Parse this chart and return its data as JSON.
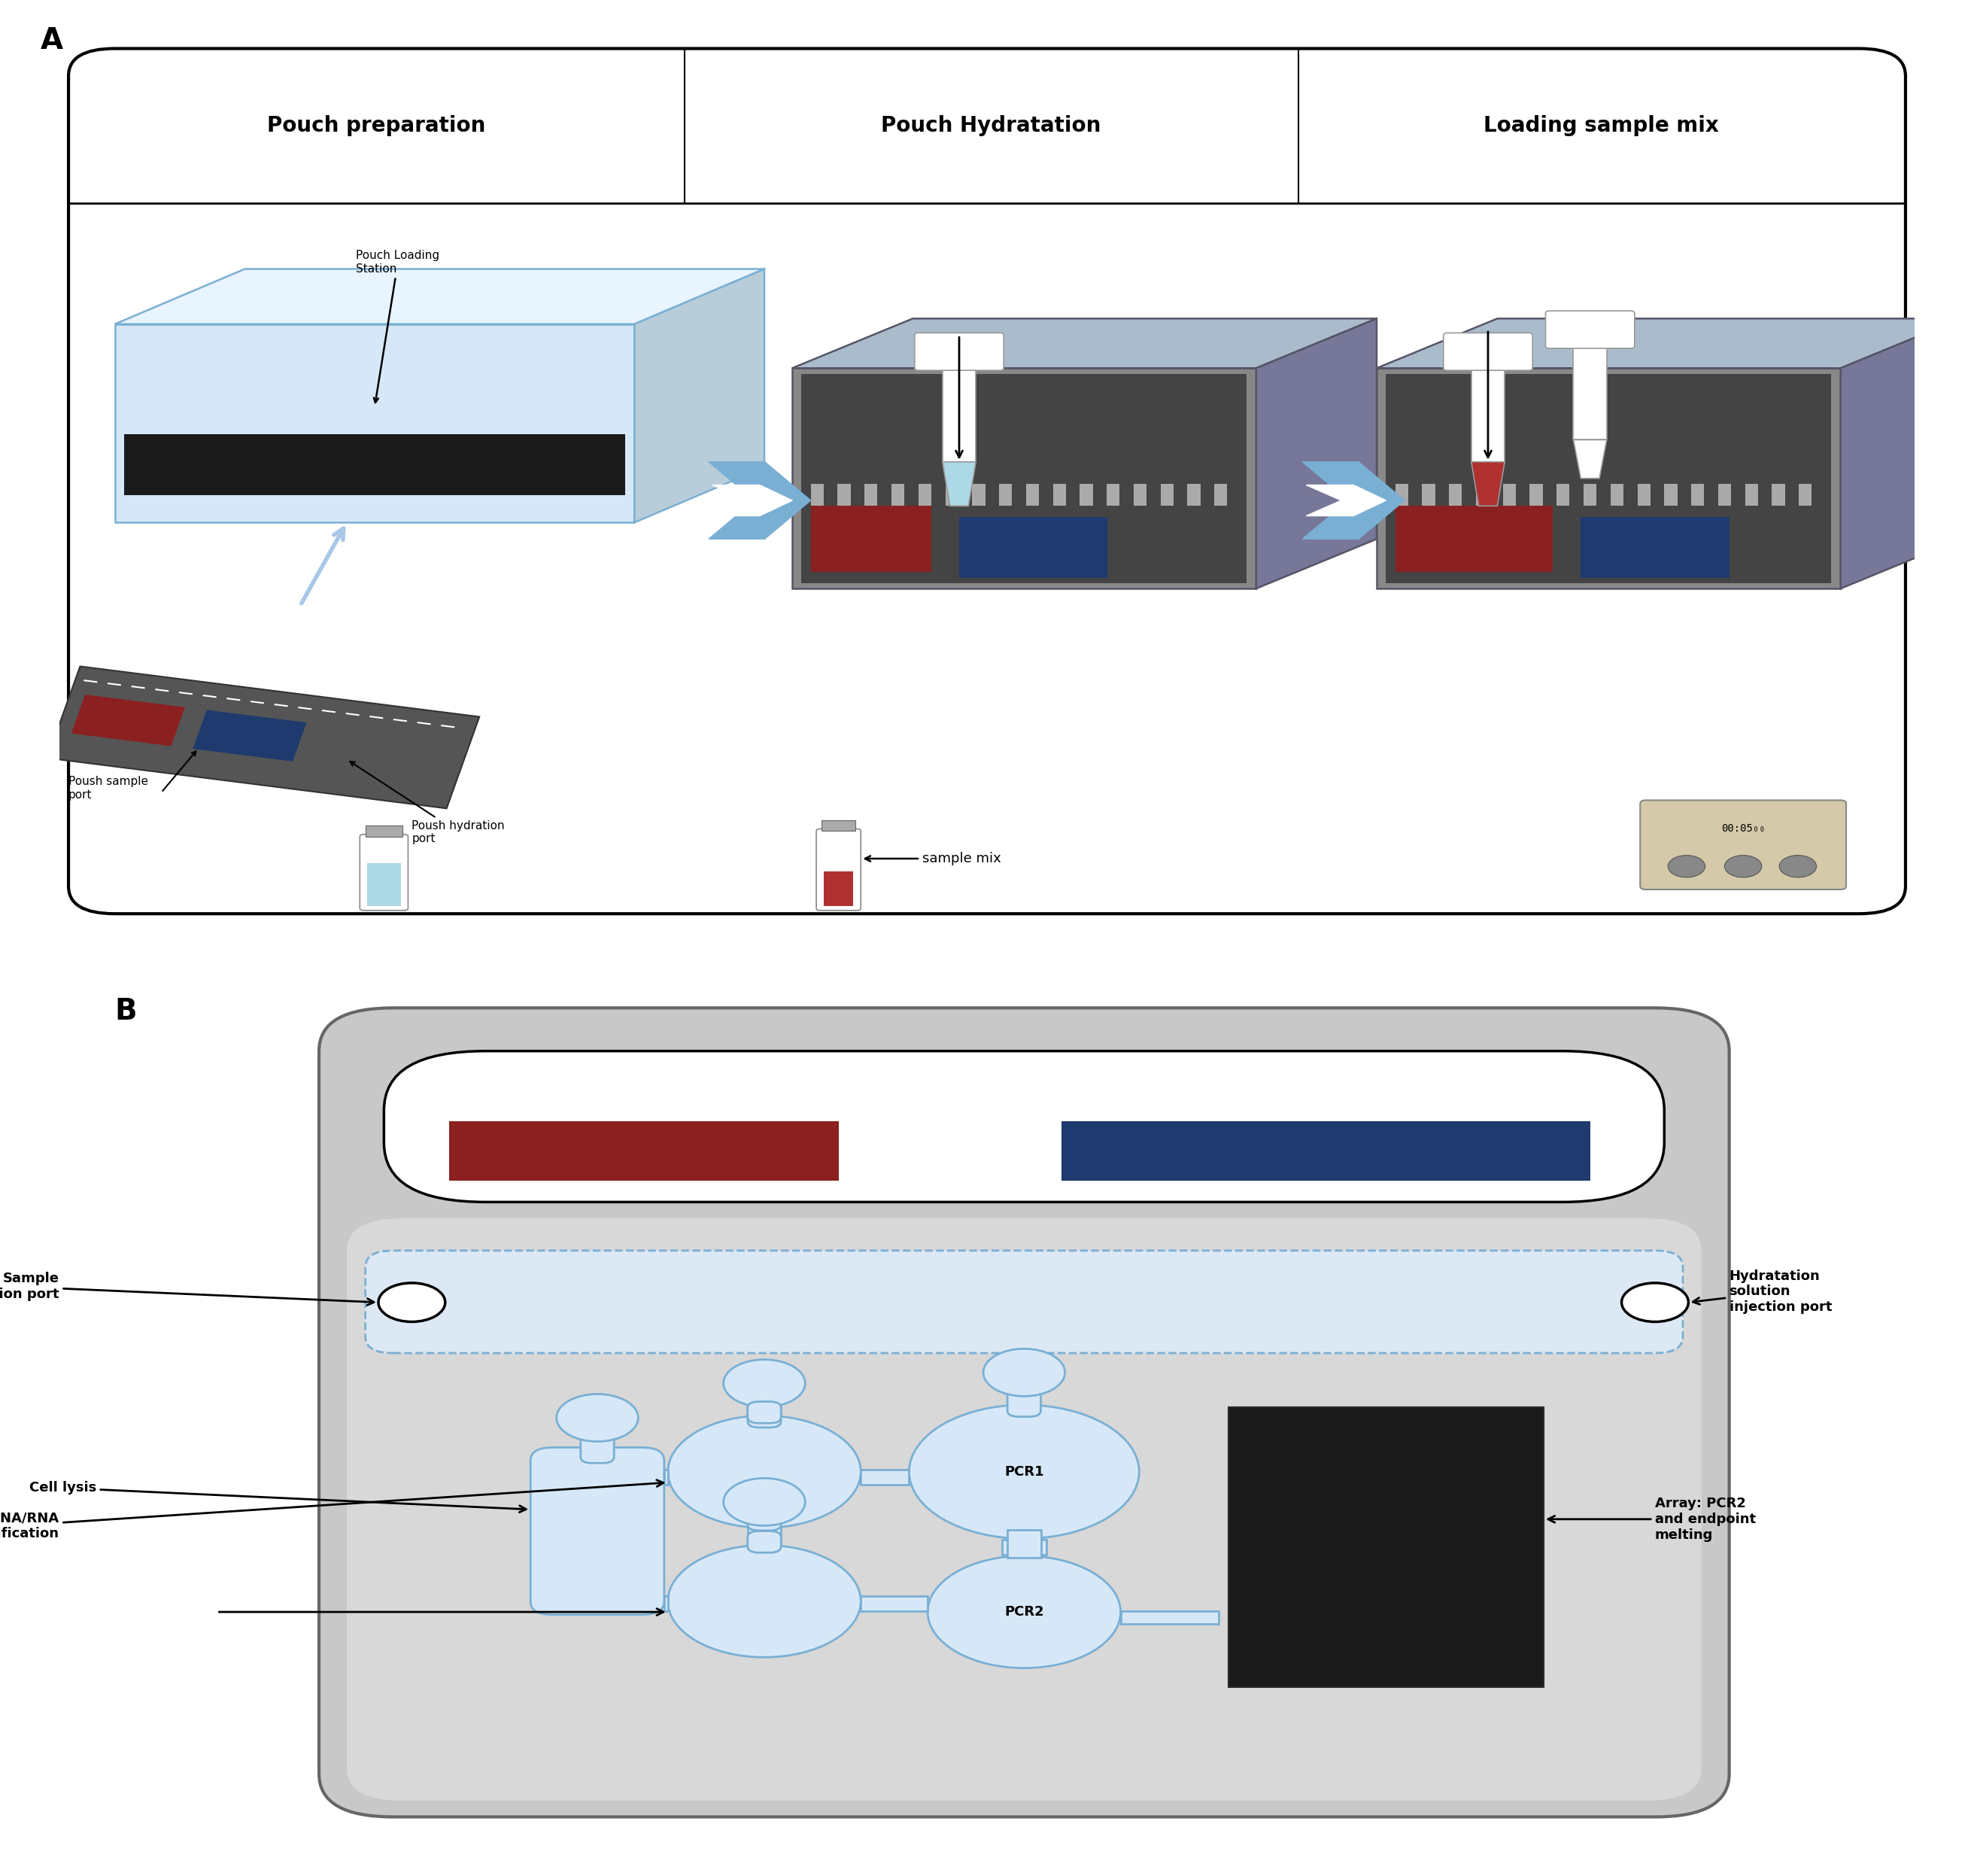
{
  "fig_width": 26.24,
  "fig_height": 24.93,
  "bg_color": "#ffffff",
  "panel_A_label": "A",
  "panel_B_label": "B",
  "col_headers": [
    "Pouch preparation",
    "Pouch Hydratation",
    "Loading sample mix"
  ],
  "pouch_loading_station": "Pouch Loading\nStation",
  "poush_hydration_port": "Poush hydration\nport",
  "poush_sample_port": "Poush sample\nport",
  "sample_mix_label": "sample mix",
  "panel_b_labels": {
    "sample_injection": "Sample\ninjection port",
    "hydratation_injection": "Hydratation\nsolution\ninjection port",
    "cell_lysis": "Cell lysis",
    "dna_rna": "DNA/RNA\npurification",
    "pcr1": "PCR1",
    "pcr2": "PCR2",
    "array": "Array: PCR2\nand endpoint\nmelting"
  },
  "red_color": "#8B2020",
  "blue_color": "#1E3A6E",
  "light_blue_fill": "#D6E8F7",
  "light_blue_edge": "#7AAFD4",
  "box_face": "#D6E8F7",
  "box_top": "#E8F4FF",
  "box_right": "#B8CDD9",
  "box_edge": "#7AAFD4",
  "gray_strip": "#555555",
  "dashed_fill": "#E8F2FC",
  "dashed_edge": "#7AAFD4",
  "gray_bg_outer": "#C8C8C8",
  "gray_bg_inner": "#D8D8D8",
  "timer_bg": "#D4C9A8",
  "arrow_blue": "#6FA8DC"
}
